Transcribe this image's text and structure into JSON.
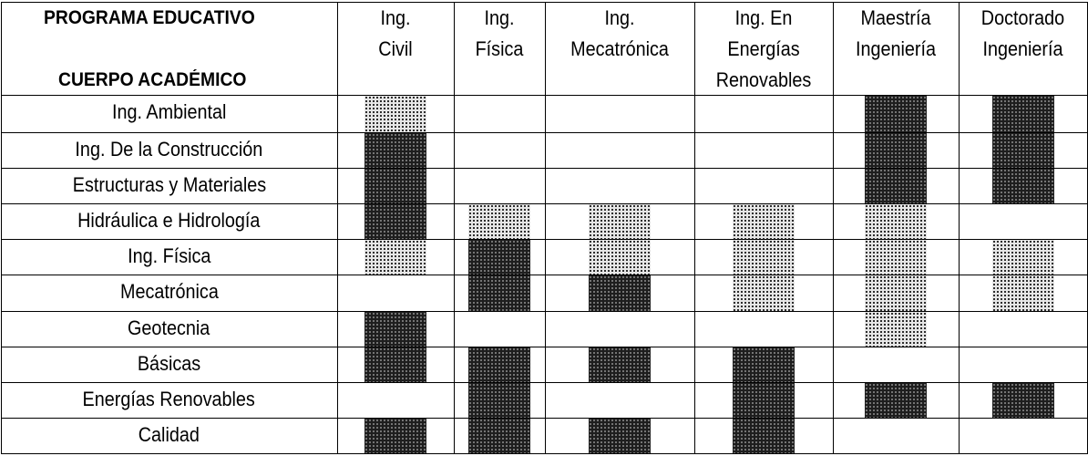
{
  "corner": {
    "top_label": "PROGRAMA EDUCATIVO",
    "bottom_label": "CUERPO ACADÉMICO"
  },
  "columns": [
    {
      "lines": [
        "Ing.",
        "Civil"
      ]
    },
    {
      "lines": [
        "Ing.",
        "Física"
      ]
    },
    {
      "lines": [
        "Ing.",
        "Mecatrónica"
      ]
    },
    {
      "lines": [
        "Ing. En",
        "Energías",
        "Renovables"
      ]
    },
    {
      "lines": [
        "Maestría",
        "Ingeniería"
      ]
    },
    {
      "lines": [
        "Doctorado",
        "Ingeniería"
      ]
    }
  ],
  "rows": [
    {
      "label": "Ing. Ambiental",
      "cells": [
        "light",
        "",
        "",
        "",
        "dark",
        "dark"
      ]
    },
    {
      "label": "Ing. De la Construcción",
      "cells": [
        "dark",
        "",
        "",
        "",
        "dark",
        "dark"
      ]
    },
    {
      "label": "Estructuras y Materiales",
      "cells": [
        "dark",
        "",
        "",
        "",
        "dark",
        "dark"
      ]
    },
    {
      "label": "Hidráulica e Hidrología",
      "cells": [
        "dark",
        "light",
        "light",
        "light",
        "light",
        ""
      ]
    },
    {
      "label": "Ing. Física",
      "cells": [
        "light",
        "dark",
        "light",
        "light",
        "light",
        "light"
      ]
    },
    {
      "label": "Mecatrónica",
      "cells": [
        "",
        "dark",
        "dark",
        "light",
        "light",
        "light"
      ]
    },
    {
      "label": "Geotecnia",
      "cells": [
        "dark",
        "",
        "",
        "",
        "light",
        ""
      ]
    },
    {
      "label": "Básicas",
      "cells": [
        "dark",
        "dark",
        "dark",
        "dark",
        "",
        ""
      ]
    },
    {
      "label": "Energías Renovables",
      "cells": [
        "",
        "dark",
        "",
        "dark",
        "dark",
        "dark"
      ]
    },
    {
      "label": "Calidad",
      "cells": [
        "dark",
        "dark",
        "dark",
        "dark",
        "",
        ""
      ]
    }
  ]
}
